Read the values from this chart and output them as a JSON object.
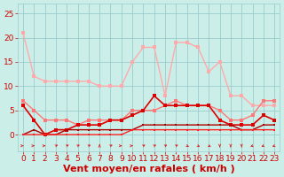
{
  "x": [
    0,
    1,
    2,
    3,
    4,
    5,
    6,
    7,
    8,
    9,
    10,
    11,
    12,
    13,
    14,
    15,
    16,
    17,
    18,
    19,
    20,
    21,
    22,
    23
  ],
  "series": [
    {
      "name": "rafales_max",
      "color": "#ffaaaa",
      "linewidth": 1.0,
      "markersize": 2.5,
      "values": [
        21,
        12,
        11,
        11,
        11,
        11,
        11,
        10,
        10,
        10,
        15,
        18,
        18,
        8,
        19,
        19,
        18,
        13,
        15,
        8,
        8,
        6,
        6,
        6
      ]
    },
    {
      "name": "vent_moyen_high",
      "color": "#ff7777",
      "linewidth": 1.0,
      "markersize": 2.5,
      "values": [
        7,
        5,
        3,
        3,
        3,
        2,
        3,
        3,
        3,
        3,
        5,
        5,
        5,
        6,
        7,
        6,
        6,
        6,
        5,
        3,
        3,
        4,
        7,
        7
      ]
    },
    {
      "name": "vent_moyen_mid",
      "color": "#dd0000",
      "linewidth": 1.2,
      "markersize": 2.5,
      "values": [
        6,
        3,
        0,
        1,
        1,
        2,
        2,
        2,
        3,
        3,
        4,
        5,
        8,
        6,
        6,
        6,
        6,
        6,
        3,
        2,
        2,
        2,
        4,
        3
      ]
    },
    {
      "name": "vent_moyen_low",
      "color": "#aa0000",
      "linewidth": 1.0,
      "markersize": 2.0,
      "values": [
        0,
        1,
        0,
        0,
        1,
        1,
        1,
        1,
        1,
        1,
        1,
        2,
        2,
        2,
        2,
        2,
        2,
        2,
        2,
        2,
        1,
        1,
        2,
        2
      ]
    },
    {
      "name": "vent_min",
      "color": "#ff2222",
      "linewidth": 1.0,
      "markersize": 2.0,
      "values": [
        0,
        0,
        0,
        0,
        0,
        0,
        0,
        0,
        0,
        0,
        1,
        1,
        1,
        1,
        1,
        1,
        1,
        1,
        1,
        1,
        1,
        1,
        1,
        1
      ]
    }
  ],
  "arrow_directions": [
    0,
    0,
    0,
    45,
    45,
    45,
    45,
    90,
    45,
    0,
    0,
    45,
    45,
    45,
    45,
    315,
    315,
    315,
    270,
    270,
    270,
    225,
    225,
    225
  ],
  "arrow_color": "#dd2222",
  "xlabel": "Vent moyen/en rafales ( km/h )",
  "ylim": [
    -3.5,
    27
  ],
  "xlim": [
    -0.5,
    23.5
  ],
  "yticks": [
    0,
    5,
    10,
    15,
    20,
    25
  ],
  "xticks": [
    0,
    1,
    2,
    3,
    4,
    5,
    6,
    7,
    8,
    9,
    10,
    11,
    12,
    13,
    14,
    15,
    16,
    17,
    18,
    19,
    20,
    21,
    22,
    23
  ],
  "background_color": "#cceee8",
  "grid_color": "#99cccc",
  "xlabel_color": "#cc0000",
  "tick_color": "#cc0000",
  "xlabel_fontsize": 8,
  "tick_fontsize": 6.5
}
